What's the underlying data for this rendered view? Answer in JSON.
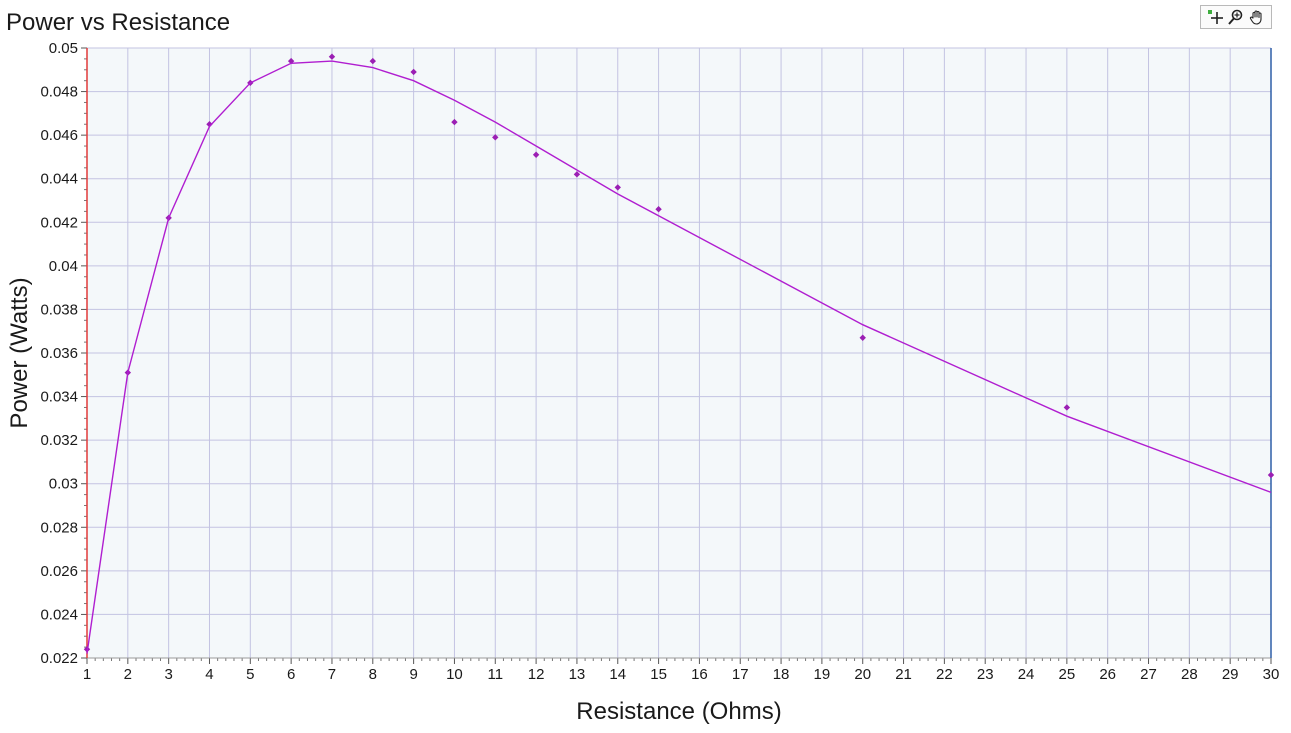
{
  "chart_data": {
    "type": "scatter",
    "title": "Power vs Resistance",
    "xlabel": "Resistance (Ohms)",
    "ylabel": "Power (Watts)",
    "xlim": [
      1,
      30
    ],
    "ylim": [
      0.022,
      0.05
    ],
    "x_ticks": [
      1,
      2,
      3,
      4,
      5,
      6,
      7,
      8,
      9,
      10,
      11,
      12,
      13,
      14,
      15,
      16,
      17,
      18,
      19,
      20,
      21,
      22,
      23,
      24,
      25,
      26,
      27,
      28,
      29,
      30
    ],
    "y_ticks": [
      "0.022",
      "0.024",
      "0.026",
      "0.028",
      "0.03",
      "0.032",
      "0.034",
      "0.036",
      "0.038",
      "0.04",
      "0.042",
      "0.044",
      "0.046",
      "0.048",
      "0.05"
    ],
    "grid": true,
    "legend": "none",
    "series": [
      {
        "kind": "measured-points",
        "marker": "diamond",
        "color": "#9b1fb4",
        "x": [
          1,
          2,
          3,
          4,
          5,
          6,
          7,
          8,
          9,
          10,
          11,
          12,
          13,
          14,
          15,
          20,
          25,
          30
        ],
        "y": [
          0.0224,
          0.0351,
          0.0422,
          0.0465,
          0.0484,
          0.0494,
          0.0496,
          0.0494,
          0.0489,
          0.0466,
          0.0459,
          0.0451,
          0.0442,
          0.0436,
          0.0426,
          0.0367,
          0.0335,
          0.0304
        ]
      },
      {
        "kind": "fit-curve",
        "marker": "none",
        "color": "#b01ed0",
        "x": [
          1,
          2,
          3,
          4,
          5,
          6,
          7,
          8,
          9,
          10,
          11,
          12,
          13,
          14,
          15,
          20,
          25,
          30
        ],
        "y": [
          0.0222,
          0.0351,
          0.0422,
          0.0464,
          0.0484,
          0.0493,
          0.0494,
          0.0491,
          0.0485,
          0.0476,
          0.0466,
          0.0455,
          0.0444,
          0.0433,
          0.0423,
          0.0373,
          0.0331,
          0.0296
        ]
      }
    ],
    "colors": {
      "plot_background": "#f4f8fa",
      "grid": "#c3c3e2",
      "left_axis_line": "#e23a3a",
      "right_axis_line": "#2f5fa8"
    }
  },
  "toolbar": {
    "icons": [
      "pan-cursor-icon",
      "zoom-icon",
      "hand-icon"
    ]
  }
}
